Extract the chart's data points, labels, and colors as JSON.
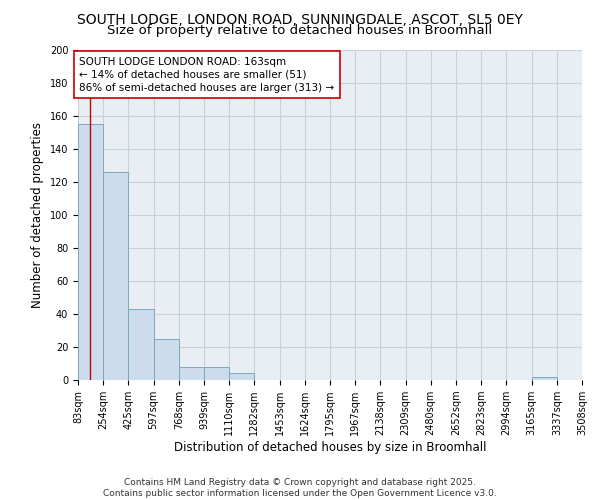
{
  "title_line1": "SOUTH LODGE, LONDON ROAD, SUNNINGDALE, ASCOT, SL5 0EY",
  "title_line2": "Size of property relative to detached houses in Broomhall",
  "xlabel": "Distribution of detached houses by size in Broomhall",
  "ylabel": "Number of detached properties",
  "bin_edges": [
    83,
    254,
    425,
    597,
    768,
    939,
    1110,
    1282,
    1453,
    1624,
    1795,
    1967,
    2138,
    2309,
    2480,
    2652,
    2823,
    2994,
    3165,
    3337,
    3508
  ],
  "bar_heights": [
    155,
    126,
    43,
    25,
    8,
    8,
    4,
    0,
    0,
    0,
    0,
    0,
    0,
    0,
    0,
    0,
    0,
    0,
    2,
    0
  ],
  "bar_color": "#ccdcec",
  "bar_edge_color": "#7aaabf",
  "red_line_x": 163,
  "red_line_color": "#cc0000",
  "annotation_text": "SOUTH LODGE LONDON ROAD: 163sqm\n← 14% of detached houses are smaller (51)\n86% of semi-detached houses are larger (313) →",
  "annotation_box_color": "#ffffff",
  "annotation_box_edge_color": "#cc0000",
  "ylim": [
    0,
    200
  ],
  "yticks": [
    0,
    20,
    40,
    60,
    80,
    100,
    120,
    140,
    160,
    180,
    200
  ],
  "grid_color": "#c8d0d8",
  "background_color": "#e8eef4",
  "footer_text": "Contains HM Land Registry data © Crown copyright and database right 2025.\nContains public sector information licensed under the Open Government Licence v3.0.",
  "title_fontsize": 10,
  "subtitle_fontsize": 9.5,
  "tick_fontsize": 7,
  "ylabel_fontsize": 8.5,
  "xlabel_fontsize": 8.5,
  "annotation_fontsize": 7.5,
  "footer_fontsize": 6.5
}
